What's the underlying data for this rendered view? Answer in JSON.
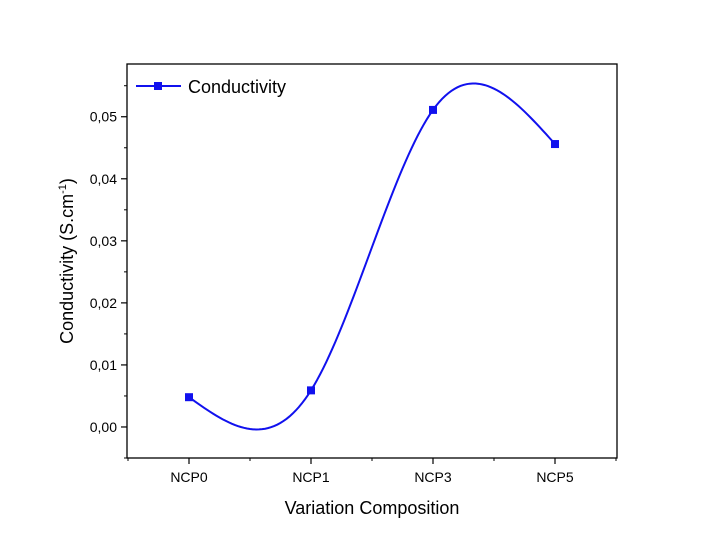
{
  "chart_data": {
    "type": "line",
    "categories": [
      "NCP0",
      "NCP1",
      "NCP3",
      "NCP5"
    ],
    "series": [
      {
        "name": "Conductivity",
        "values": [
          0.0048,
          0.0059,
          0.0511,
          0.0456
        ]
      }
    ],
    "xlabel": "Variation Composition",
    "ylabel_main": "Conductivity (S.cm",
    "ylabel_sup": "-1",
    "ylabel_close": ")",
    "ylim": [
      -0.005,
      0.0585
    ],
    "yticks": [
      "0,00",
      "0,01",
      "0,02",
      "0,03",
      "0,04",
      "0,05"
    ],
    "ytick_values": [
      0,
      0.01,
      0.02,
      0.03,
      0.04,
      0.05
    ],
    "smooth": true,
    "grid": false,
    "legend_position": "top-left",
    "series_color": "#1111ee"
  }
}
